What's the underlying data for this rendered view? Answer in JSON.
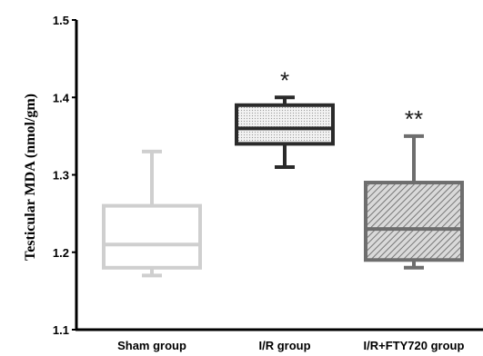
{
  "chart_data": {
    "type": "box",
    "ylabel": "Testicular MDA (nmol/gm)",
    "ylim": [
      1.1,
      1.5
    ],
    "yticks": [
      "1.1",
      "1.2",
      "1.3",
      "1.4",
      "1.5"
    ],
    "grid": false,
    "categories": [
      "Sham group",
      "I/R group",
      "I/R+FTY720 group"
    ],
    "boxes": [
      {
        "category": "Sham group",
        "min": 1.17,
        "q1": 1.18,
        "median": 1.21,
        "q3": 1.26,
        "max": 1.33,
        "color": "#cfcfcf",
        "fill": "none",
        "annotation": ""
      },
      {
        "category": "I/R group",
        "min": 1.31,
        "q1": 1.34,
        "median": 1.36,
        "q3": 1.39,
        "max": 1.4,
        "color": "#2a2a2a",
        "fill": "dotted-light",
        "annotation": "*"
      },
      {
        "category": "I/R+FTY720 group",
        "min": 1.18,
        "q1": 1.19,
        "median": 1.23,
        "q3": 1.29,
        "max": 1.35,
        "color": "#6e6e6e",
        "fill": "diagonal-hatch",
        "annotation": "**"
      }
    ]
  }
}
